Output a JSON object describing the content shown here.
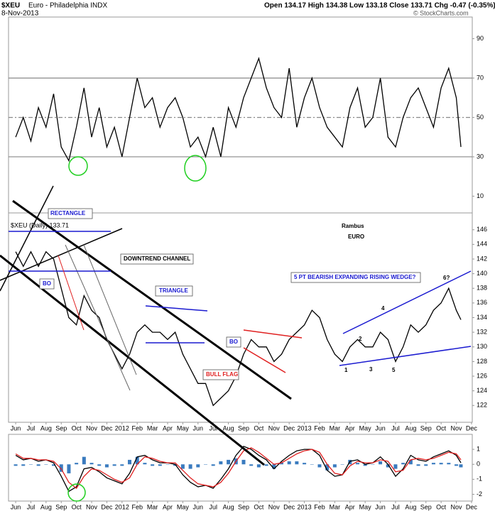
{
  "header": {
    "symbol": "$XEU",
    "name": "Euro - Philadelphia INDX",
    "date": "8-Nov-2013",
    "quote": "Open 134.17  High 134.38  Low 133.18  Close 133.71  Chg -0.47 (-0.35%)",
    "credit": "© StockCharts.com"
  },
  "chart_data": [
    {
      "type": "line",
      "xlim": [
        -0.47,
        30.05
      ],
      "ylim": [
        1.5,
        101
      ],
      "yticks": [
        10,
        30,
        50,
        70,
        90
      ],
      "reference_lines": [
        30,
        50,
        70
      ],
      "reference_dash": [
        false,
        true,
        false
      ],
      "x": [
        0,
        0.5,
        1,
        1.5,
        2,
        2.5,
        3,
        3.5,
        4,
        4.5,
        5,
        5.5,
        6,
        6.5,
        7,
        7.5,
        8,
        8.5,
        9,
        9.5,
        10,
        10.5,
        11,
        11.5,
        12,
        12.5,
        13,
        13.5,
        14,
        14.5,
        15,
        15.5,
        16,
        16.5,
        17,
        17.5,
        18,
        18.5,
        19,
        19.5,
        20,
        20.5,
        21,
        21.5,
        22,
        22.5,
        23,
        23.5,
        24,
        24.5,
        25,
        25.5,
        26,
        26.5,
        27,
        27.5,
        28,
        28.5,
        29,
        29.3
      ],
      "series": [
        {
          "color": "#000000",
          "values": [
            40,
            50,
            38,
            55,
            45,
            62,
            35,
            28,
            45,
            65,
            40,
            55,
            35,
            45,
            30,
            50,
            70,
            55,
            60,
            45,
            55,
            60,
            50,
            35,
            40,
            30,
            45,
            30,
            55,
            45,
            60,
            70,
            80,
            65,
            55,
            50,
            75,
            45,
            60,
            70,
            55,
            45,
            40,
            35,
            55,
            65,
            45,
            50,
            70,
            40,
            35,
            50,
            60,
            65,
            55,
            45,
            65,
            75,
            60,
            35
          ]
        }
      ]
    },
    {
      "type": "line",
      "xlim": [
        -0.47,
        30.05
      ],
      "ylim": [
        119.7,
        148.3
      ],
      "yticks": [
        122,
        124,
        126,
        128,
        130,
        132,
        134,
        136,
        138,
        140,
        142,
        144,
        146
      ],
      "xticks": [
        {
          "value": 0,
          "label": "Jun"
        },
        {
          "value": 1,
          "label": "Jul"
        },
        {
          "value": 2,
          "label": "Aug"
        },
        {
          "value": 3,
          "label": "Sep"
        },
        {
          "value": 4,
          "label": "Oct"
        },
        {
          "value": 5,
          "label": "Nov"
        },
        {
          "value": 6,
          "label": "Dec"
        },
        {
          "value": 7,
          "label": "2012"
        },
        {
          "value": 8,
          "label": "Feb"
        },
        {
          "value": 9,
          "label": "Mar"
        },
        {
          "value": 10,
          "label": "Apr"
        },
        {
          "value": 11,
          "label": "May"
        },
        {
          "value": 12,
          "label": "Jun"
        },
        {
          "value": 13,
          "label": "Jul"
        },
        {
          "value": 14,
          "label": "Aug"
        },
        {
          "value": 15,
          "label": "Sep"
        },
        {
          "value": 16,
          "label": "Oct"
        },
        {
          "value": 17,
          "label": "Nov"
        },
        {
          "value": 18,
          "label": "Dec"
        },
        {
          "value": 19,
          "label": "2013"
        },
        {
          "value": 20,
          "label": "Feb"
        },
        {
          "value": 21,
          "label": "Mar"
        },
        {
          "value": 22,
          "label": "Apr"
        },
        {
          "value": 23,
          "label": "May"
        },
        {
          "value": 24,
          "label": "Jun"
        },
        {
          "value": 25,
          "label": "Jul"
        },
        {
          "value": 26,
          "label": "Aug"
        },
        {
          "value": 27,
          "label": "Sep"
        },
        {
          "value": 28,
          "label": "Oct"
        },
        {
          "value": 29,
          "label": "Nov"
        },
        {
          "value": 30,
          "label": "Dec"
        }
      ],
      "annotations": [
        "RECTANGLE",
        "BO",
        "DOWNTREND CHANNEL",
        "TRIANGLE",
        "BULL FLAG",
        "BO",
        "5 PT BEARISH EXPANDING RISING WEDGE?",
        "Rambus",
        "EURO",
        "1",
        "2",
        "3",
        "4",
        "5",
        "6?"
      ],
      "x": [
        0,
        0.5,
        1,
        1.5,
        2,
        2.5,
        3,
        3.5,
        4,
        4.5,
        5,
        5.5,
        6,
        6.5,
        7,
        7.5,
        8,
        8.5,
        9,
        9.5,
        10,
        10.5,
        11,
        11.5,
        12,
        12.5,
        13,
        13.5,
        14,
        14.5,
        15,
        15.5,
        16,
        16.5,
        17,
        17.5,
        18,
        18.5,
        19,
        19.5,
        20,
        20.5,
        21,
        21.5,
        22,
        22.5,
        23,
        23.5,
        24,
        24.5,
        25,
        25.5,
        26,
        26.5,
        27,
        27.5,
        28,
        28.5,
        29,
        29.3
      ],
      "series": [
        {
          "name": "$XEU (Daily) 133.71",
          "color": "#000000",
          "values": [
            143,
            141,
            143,
            141,
            143,
            142,
            138,
            134,
            133,
            137,
            135,
            134,
            131,
            129,
            127,
            129,
            132,
            133,
            132,
            132,
            131,
            132,
            129,
            127,
            125,
            125,
            122,
            123,
            124,
            126,
            129,
            131,
            130,
            130,
            128,
            129,
            131,
            132,
            133,
            135,
            134,
            131,
            129,
            128,
            130,
            131,
            130,
            130,
            132,
            131,
            128,
            130,
            133,
            132,
            133,
            135,
            136,
            138,
            135,
            133.71
          ]
        }
      ]
    },
    {
      "type": "line",
      "xlim": [
        -0.47,
        30.05
      ],
      "ylim": [
        -2.45,
        2.0
      ],
      "yticks": [
        -2,
        -1,
        0,
        1
      ],
      "xticks": [
        {
          "value": 0,
          "label": "Jun"
        },
        {
          "value": 1,
          "label": "Jul"
        },
        {
          "value": 2,
          "label": "Aug"
        },
        {
          "value": 3,
          "label": "Sep"
        },
        {
          "value": 4,
          "label": "Oct"
        },
        {
          "value": 5,
          "label": "Nov"
        },
        {
          "value": 6,
          "label": "Dec"
        },
        {
          "value": 7,
          "label": "2012"
        },
        {
          "value": 8,
          "label": "Feb"
        },
        {
          "value": 9,
          "label": "Mar"
        },
        {
          "value": 10,
          "label": "Apr"
        },
        {
          "value": 11,
          "label": "May"
        },
        {
          "value": 12,
          "label": "Jun"
        },
        {
          "value": 13,
          "label": "Jul"
        },
        {
          "value": 14,
          "label": "Aug"
        },
        {
          "value": 15,
          "label": "Sep"
        },
        {
          "value": 16,
          "label": "Oct"
        },
        {
          "value": 17,
          "label": "Nov"
        },
        {
          "value": 18,
          "label": "Dec"
        },
        {
          "value": 19,
          "label": "2013"
        },
        {
          "value": 20,
          "label": "Feb"
        },
        {
          "value": 21,
          "label": "Mar"
        },
        {
          "value": 22,
          "label": "Apr"
        },
        {
          "value": 23,
          "label": "May"
        },
        {
          "value": 24,
          "label": "Jun"
        },
        {
          "value": 25,
          "label": "Jul"
        },
        {
          "value": 26,
          "label": "Aug"
        },
        {
          "value": 27,
          "label": "Sep"
        },
        {
          "value": 28,
          "label": "Oct"
        },
        {
          "value": 29,
          "label": "Nov"
        },
        {
          "value": 30,
          "label": "Dec"
        }
      ],
      "x": [
        0,
        0.5,
        1,
        1.5,
        2,
        2.5,
        3,
        3.5,
        4,
        4.5,
        5,
        5.5,
        6,
        6.5,
        7,
        7.5,
        8,
        8.5,
        9,
        9.5,
        10,
        10.5,
        11,
        11.5,
        12,
        12.5,
        13,
        13.5,
        14,
        14.5,
        15,
        15.5,
        16,
        16.5,
        17,
        17.5,
        18,
        18.5,
        19,
        19.5,
        20,
        20.5,
        21,
        21.5,
        22,
        22.5,
        23,
        23.5,
        24,
        24.5,
        25,
        25.5,
        26,
        26.5,
        27,
        27.5,
        28,
        28.5,
        29,
        29.3
      ],
      "series": [
        {
          "type": "bar",
          "color": "#3a7bbf",
          "values": [
            -0.1,
            -0.1,
            0,
            -0.1,
            0,
            -0.1,
            -0.5,
            -0.6,
            0.1,
            0.5,
            0.1,
            -0.1,
            -0.2,
            -0.1,
            -0.1,
            0.3,
            0.5,
            0.1,
            -0.1,
            -0.1,
            0,
            -0.1,
            -0.3,
            -0.3,
            -0.2,
            0,
            -0.1,
            0.2,
            0.3,
            0.4,
            0.3,
            -0.1,
            -0.2,
            -0.1,
            -0.3,
            0.1,
            0.2,
            0.2,
            0.1,
            0,
            -0.2,
            -0.4,
            -0.2,
            0,
            0.3,
            0.1,
            -0.1,
            0,
            0.2,
            -0.2,
            -0.3,
            0.1,
            0.3,
            -0.1,
            -0.1,
            0.1,
            0.1,
            0.1,
            -0.1,
            -0.2
          ]
        },
        {
          "type": "line",
          "color": "#000000",
          "values": [
            0.6,
            0.3,
            0.4,
            0.2,
            0.3,
            0.1,
            -0.8,
            -1.8,
            -1.5,
            -0.3,
            -0.2,
            -0.5,
            -0.9,
            -1.1,
            -1.3,
            -0.6,
            0.5,
            0.6,
            0.3,
            0.1,
            0.1,
            0,
            -0.7,
            -1.2,
            -1.5,
            -1.4,
            -1.6,
            -1.0,
            -0.3,
            0.6,
            1.2,
            1.0,
            0.6,
            0.3,
            -0.3,
            0.2,
            0.6,
            0.9,
            1.0,
            1.0,
            0.6,
            -0.4,
            -0.8,
            -0.7,
            0.2,
            0.3,
            0,
            0.1,
            0.5,
            0,
            -0.8,
            -0.3,
            0.6,
            0.3,
            0.2,
            0.5,
            0.7,
            0.9,
            0.6,
            0.1
          ]
        },
        {
          "type": "line",
          "color": "#e02020",
          "values": [
            0.7,
            0.4,
            0.4,
            0.3,
            0.3,
            0.2,
            -0.3,
            -1.2,
            -1.6,
            -0.8,
            -0.3,
            -0.4,
            -0.7,
            -1.0,
            -1.2,
            -0.9,
            0.0,
            0.5,
            0.4,
            0.2,
            0.1,
            0.1,
            -0.4,
            -0.9,
            -1.3,
            -1.4,
            -1.5,
            -1.2,
            -0.6,
            0.2,
            0.9,
            1.1,
            0.8,
            0.4,
            0.0,
            0.1,
            0.4,
            0.7,
            0.9,
            1.0,
            0.8,
            0.0,
            -0.6,
            -0.7,
            -0.1,
            0.2,
            0.1,
            0.1,
            0.3,
            0.2,
            -0.5,
            -0.4,
            0.3,
            0.4,
            0.3,
            0.4,
            0.6,
            0.8,
            0.7,
            0.3
          ]
        }
      ]
    }
  ]
}
